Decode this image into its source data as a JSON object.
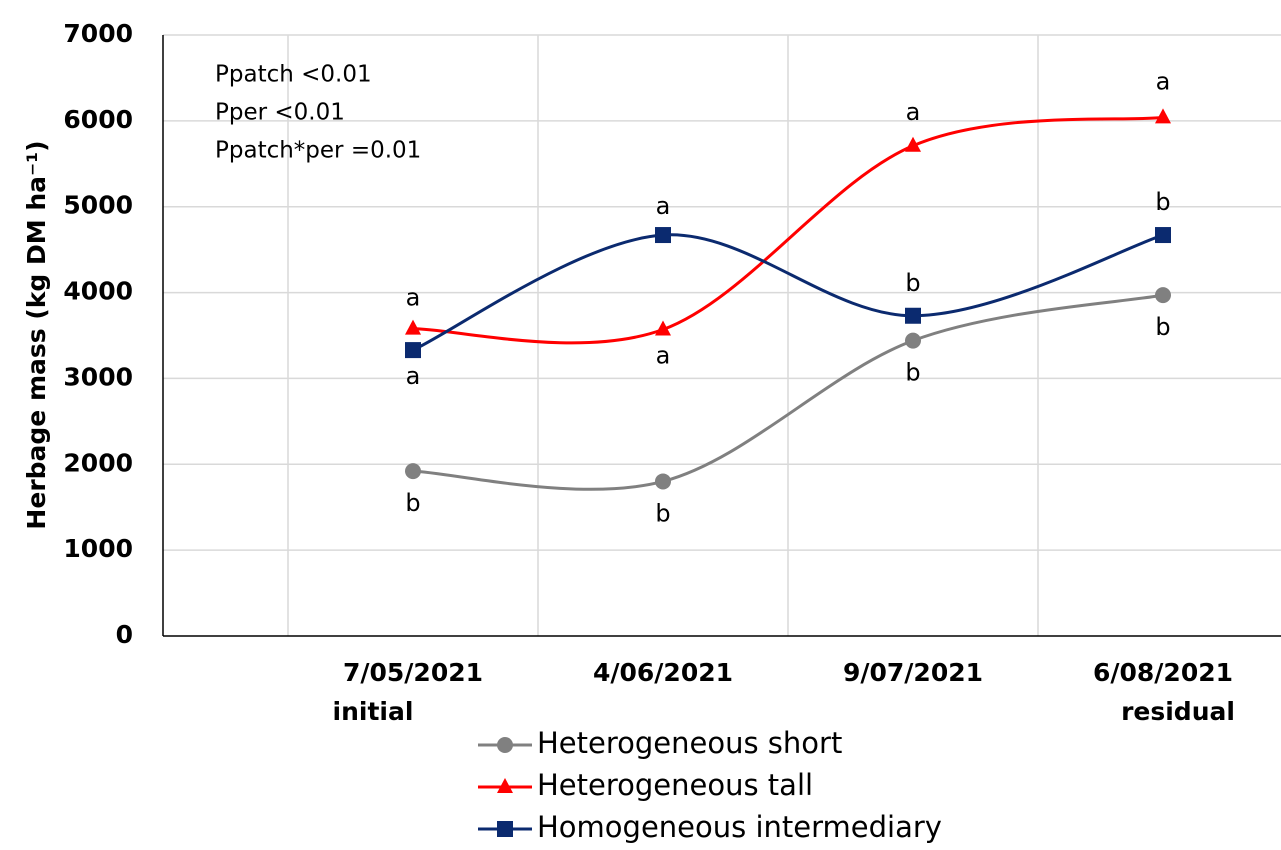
{
  "chart_data": {
    "type": "line",
    "y_label": "Herbage mass (kg DM ha⁻¹)",
    "annotations": [
      "Ppatch <0.01",
      "Pper <0.01",
      "Ppatch*per =0.01"
    ],
    "categories": [
      "7/05/2021",
      "4/06/2021",
      "9/07/2021",
      "6/08/2021"
    ],
    "category_notes": [
      "initial",
      null,
      null,
      "residual"
    ],
    "series": [
      {
        "name": "Heterogeneous short",
        "color": "#808080",
        "marker": "circle",
        "values": [
          1920,
          1800,
          3440,
          3970
        ],
        "letters": [
          "b",
          "b",
          "b",
          "b"
        ]
      },
      {
        "name": "Heterogeneous tall",
        "color": "#ff0000",
        "marker": "triangle",
        "values": [
          3580,
          3570,
          5710,
          6040
        ],
        "letters": [
          "a",
          "a",
          "a",
          "a"
        ]
      },
      {
        "name": "Homogeneous intermediary",
        "color": "#0b2a6f",
        "marker": "square",
        "values": [
          3330,
          4670,
          3730,
          4670
        ],
        "letters": [
          "a",
          "a",
          "b",
          "b"
        ]
      }
    ],
    "ylim": [
      0,
      7000
    ],
    "yticks": [
      0,
      1000,
      2000,
      3000,
      4000,
      5000,
      6000,
      7000
    ],
    "grid": true,
    "legend": "bottom"
  }
}
